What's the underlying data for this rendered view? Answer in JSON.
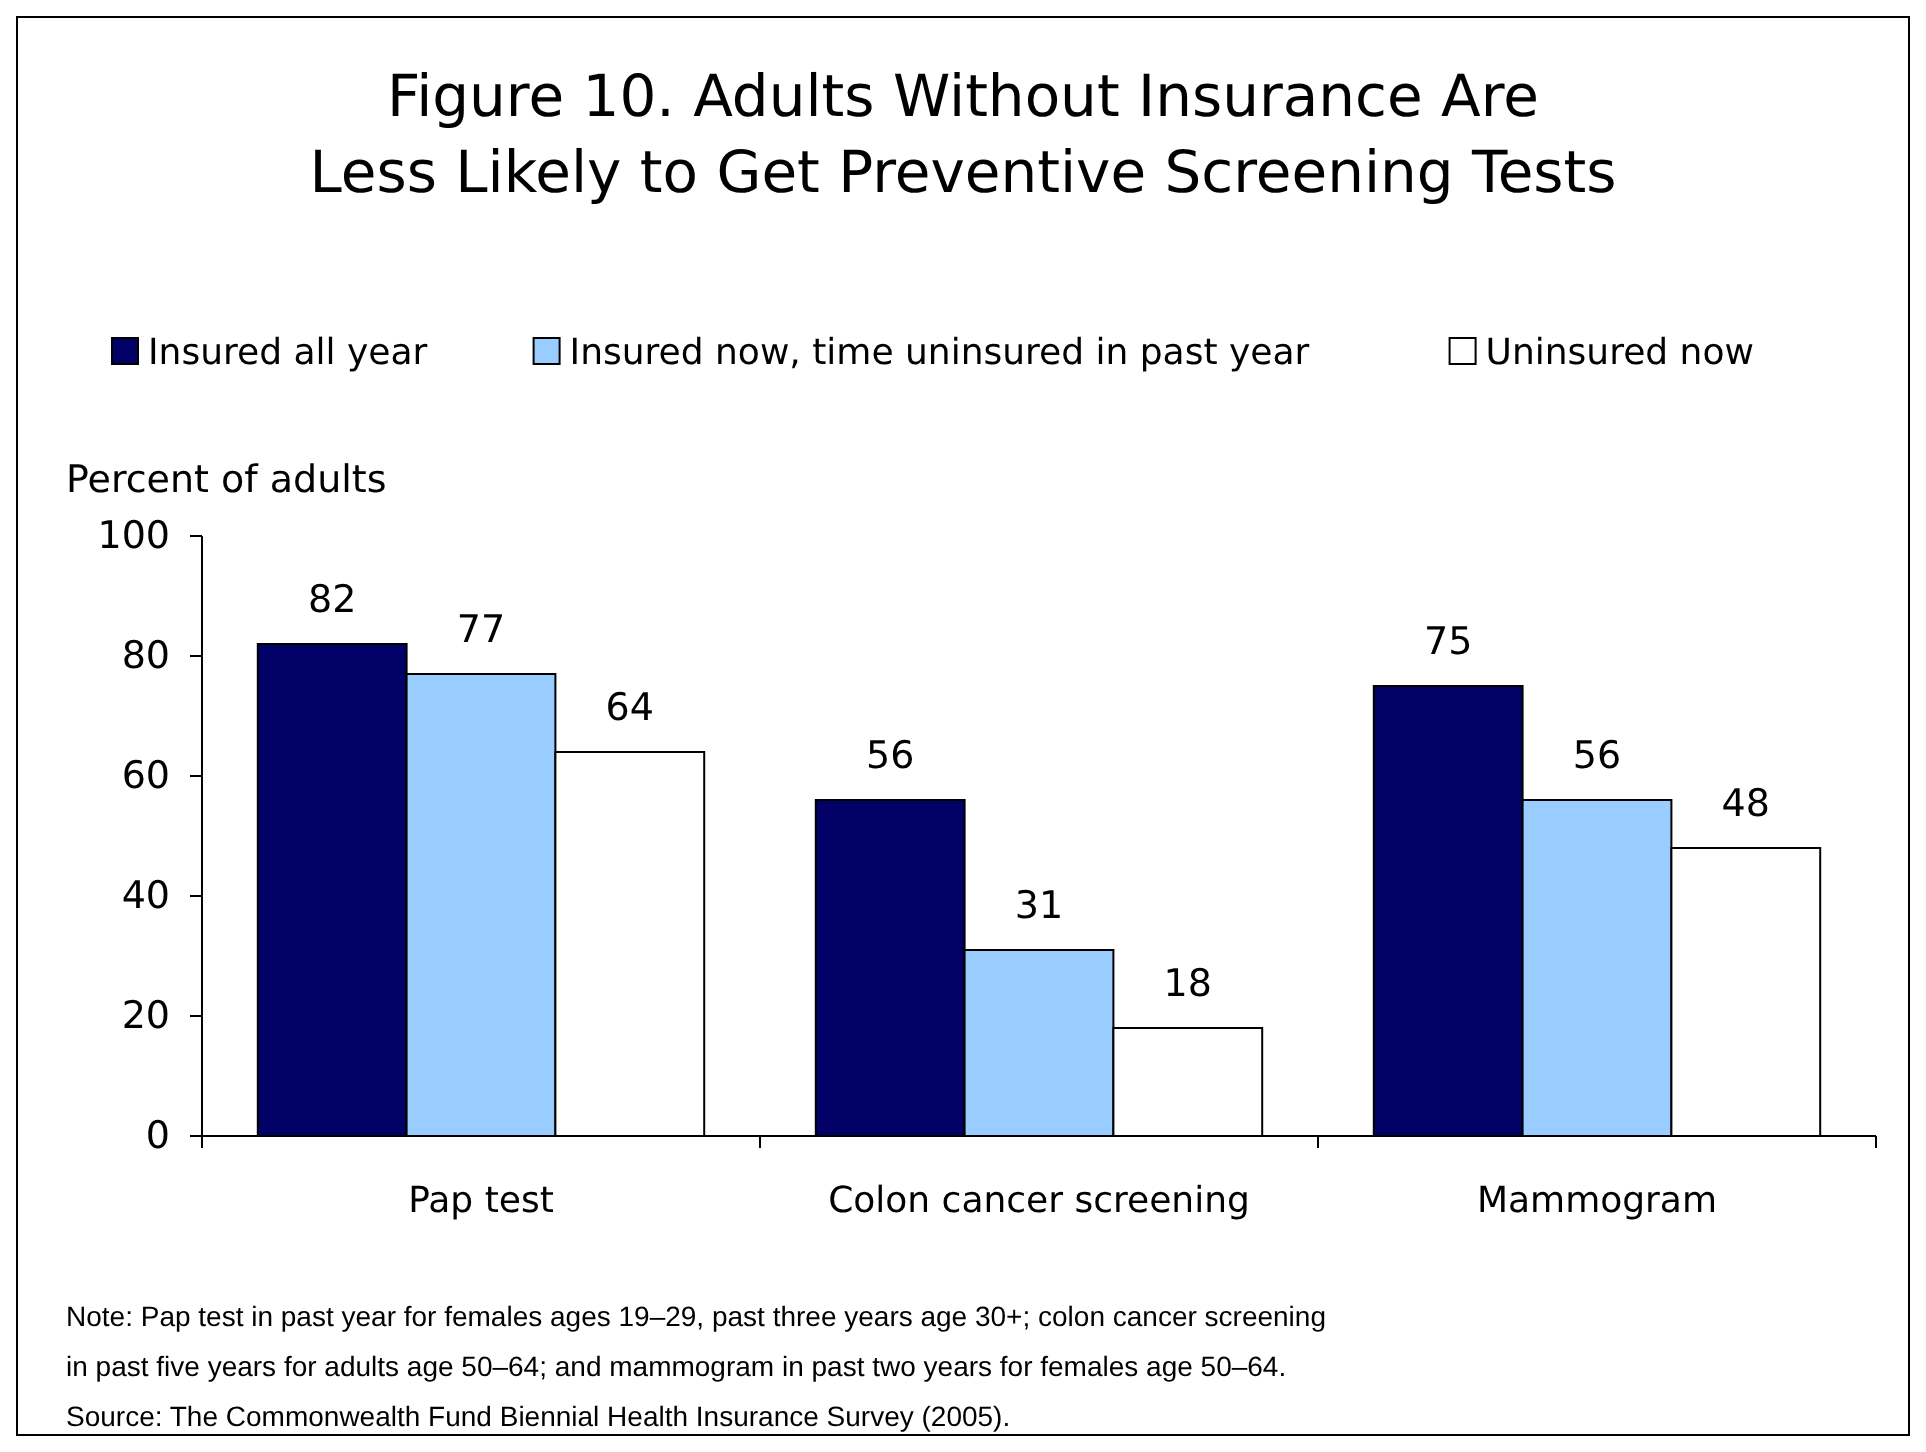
{
  "chart_data": {
    "type": "bar",
    "title": "Figure 10. Adults Without Insurance Are\nLess Likely to Get Preventive Screening Tests",
    "ylabel": "Percent of adults",
    "categories": [
      "Pap test",
      "Colon cancer screening",
      "Mammogram"
    ],
    "series": [
      {
        "name": "Insured all year",
        "color": "#000066",
        "values": [
          82,
          56,
          75
        ]
      },
      {
        "name": "Insured now, time uninsured in past year",
        "color": "#99ccff",
        "values": [
          77,
          31,
          56
        ]
      },
      {
        "name": "Uninsured now",
        "color": "#ffffff",
        "values": [
          64,
          18,
          48
        ]
      }
    ],
    "ylim": [
      0,
      100
    ],
    "yticks": [
      0,
      20,
      40,
      60,
      80,
      100
    ],
    "grid": false,
    "legend": "top",
    "data_labels": true,
    "annotations": [
      "Note: Pap test in past year for females ages 19–29, past three years age 30+; colon cancer screening",
      "in past five years for adults age 50–64; and mammogram in past two years for females age 50–64.",
      "Source: The Commonwealth Fund Biennial Health Insurance Survey (2005)."
    ]
  }
}
